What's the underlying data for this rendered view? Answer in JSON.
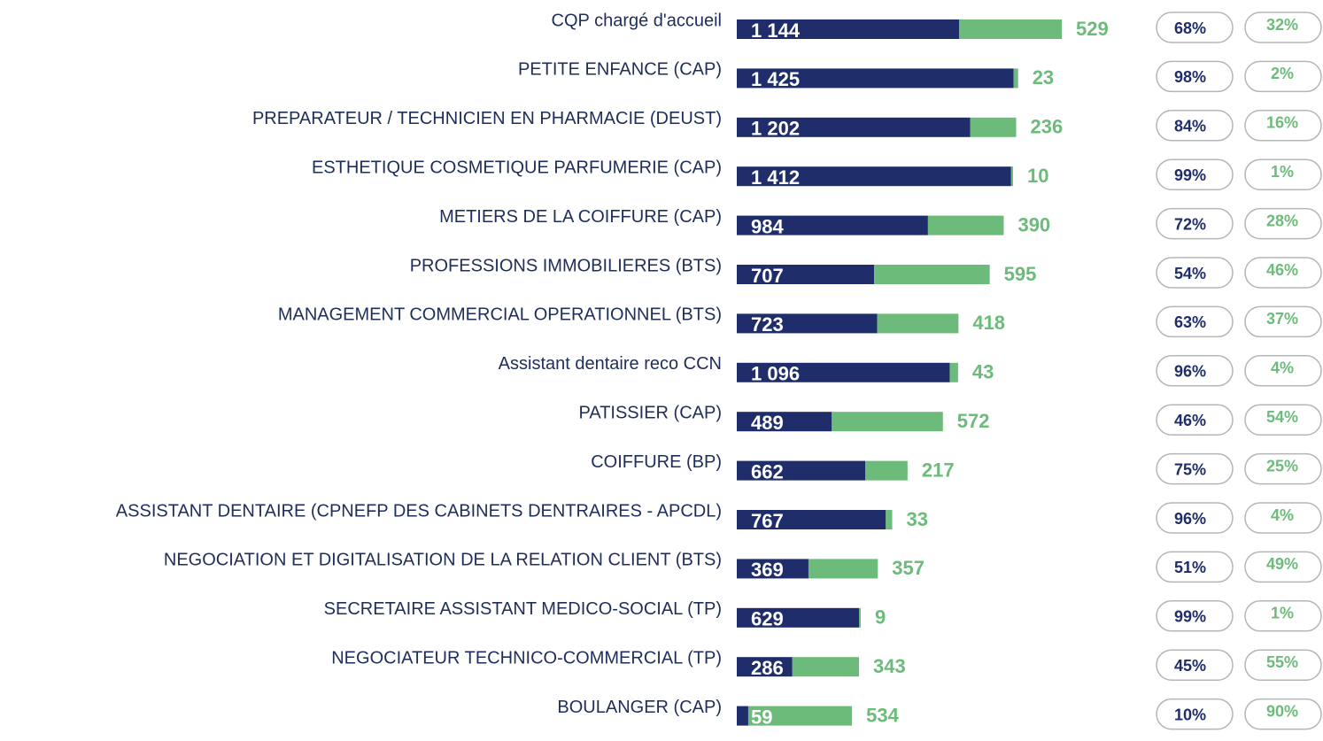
{
  "chart_data": {
    "type": "stacked-bar-horizontal",
    "categories": [
      "CQP chargé d'accueil",
      "PETITE ENFANCE (CAP)",
      "PREPARATEUR / TECHNICIEN EN PHARMACIE (DEUST)",
      "ESTHETIQUE COSMETIQUE PARFUMERIE (CAP)",
      "METIERS DE LA COIFFURE (CAP)",
      "PROFESSIONS IMMOBILIERES (BTS)",
      "MANAGEMENT COMMERCIAL OPERATIONNEL (BTS)",
      "Assistant dentaire reco CCN",
      "PATISSIER (CAP)",
      "COIFFURE (BP)",
      "ASSISTANT DENTAIRE (CPNEFP DES CABINETS DENTRAIRES - APCDL)",
      "NEGOCIATION ET DIGITALISATION DE LA RELATION CLIENT (BTS)",
      "SECRETAIRE ASSISTANT MEDICO-SOCIAL (TP)",
      "NEGOCIATEUR TECHNICO-COMMERCIAL (TP)",
      "BOULANGER (CAP)"
    ],
    "series": [
      {
        "color": "#1f2d6b",
        "values": [
          1144,
          1425,
          1202,
          1412,
          984,
          707,
          723,
          1096,
          489,
          662,
          767,
          369,
          629,
          286,
          59
        ],
        "value_labels": [
          "1 144",
          "1 425",
          "1 202",
          "1 412",
          "984",
          "707",
          "723",
          "1 096",
          "489",
          "662",
          "767",
          "369",
          "629",
          "286",
          "59"
        ]
      },
      {
        "color": "#6dbb7a",
        "values": [
          529,
          23,
          236,
          10,
          390,
          595,
          418,
          43,
          572,
          217,
          33,
          357,
          9,
          343,
          534
        ]
      }
    ],
    "shares": [
      {
        "color": "#1f2d6b",
        "values": [
          68,
          98,
          84,
          99,
          72,
          54,
          63,
          96,
          46,
          75,
          96,
          51,
          99,
          45,
          10
        ],
        "value_labels": [
          "68%",
          "98%",
          "84%",
          "99%",
          "72%",
          "54%",
          "63%",
          "96%",
          "46%",
          "75%",
          "96%",
          "51%",
          "99%",
          "45%",
          "10%"
        ]
      },
      {
        "color": "#6dbb7a",
        "values": [
          32,
          2,
          16,
          1,
          28,
          46,
          37,
          4,
          54,
          25,
          4,
          49,
          1,
          55,
          90
        ],
        "value_labels": [
          "32%",
          "2%",
          "16%",
          "1%",
          "28%",
          "46%",
          "37%",
          "4%",
          "54%",
          "25%",
          "4%",
          "49%",
          "1%",
          "55%",
          "90%"
        ]
      }
    ]
  }
}
